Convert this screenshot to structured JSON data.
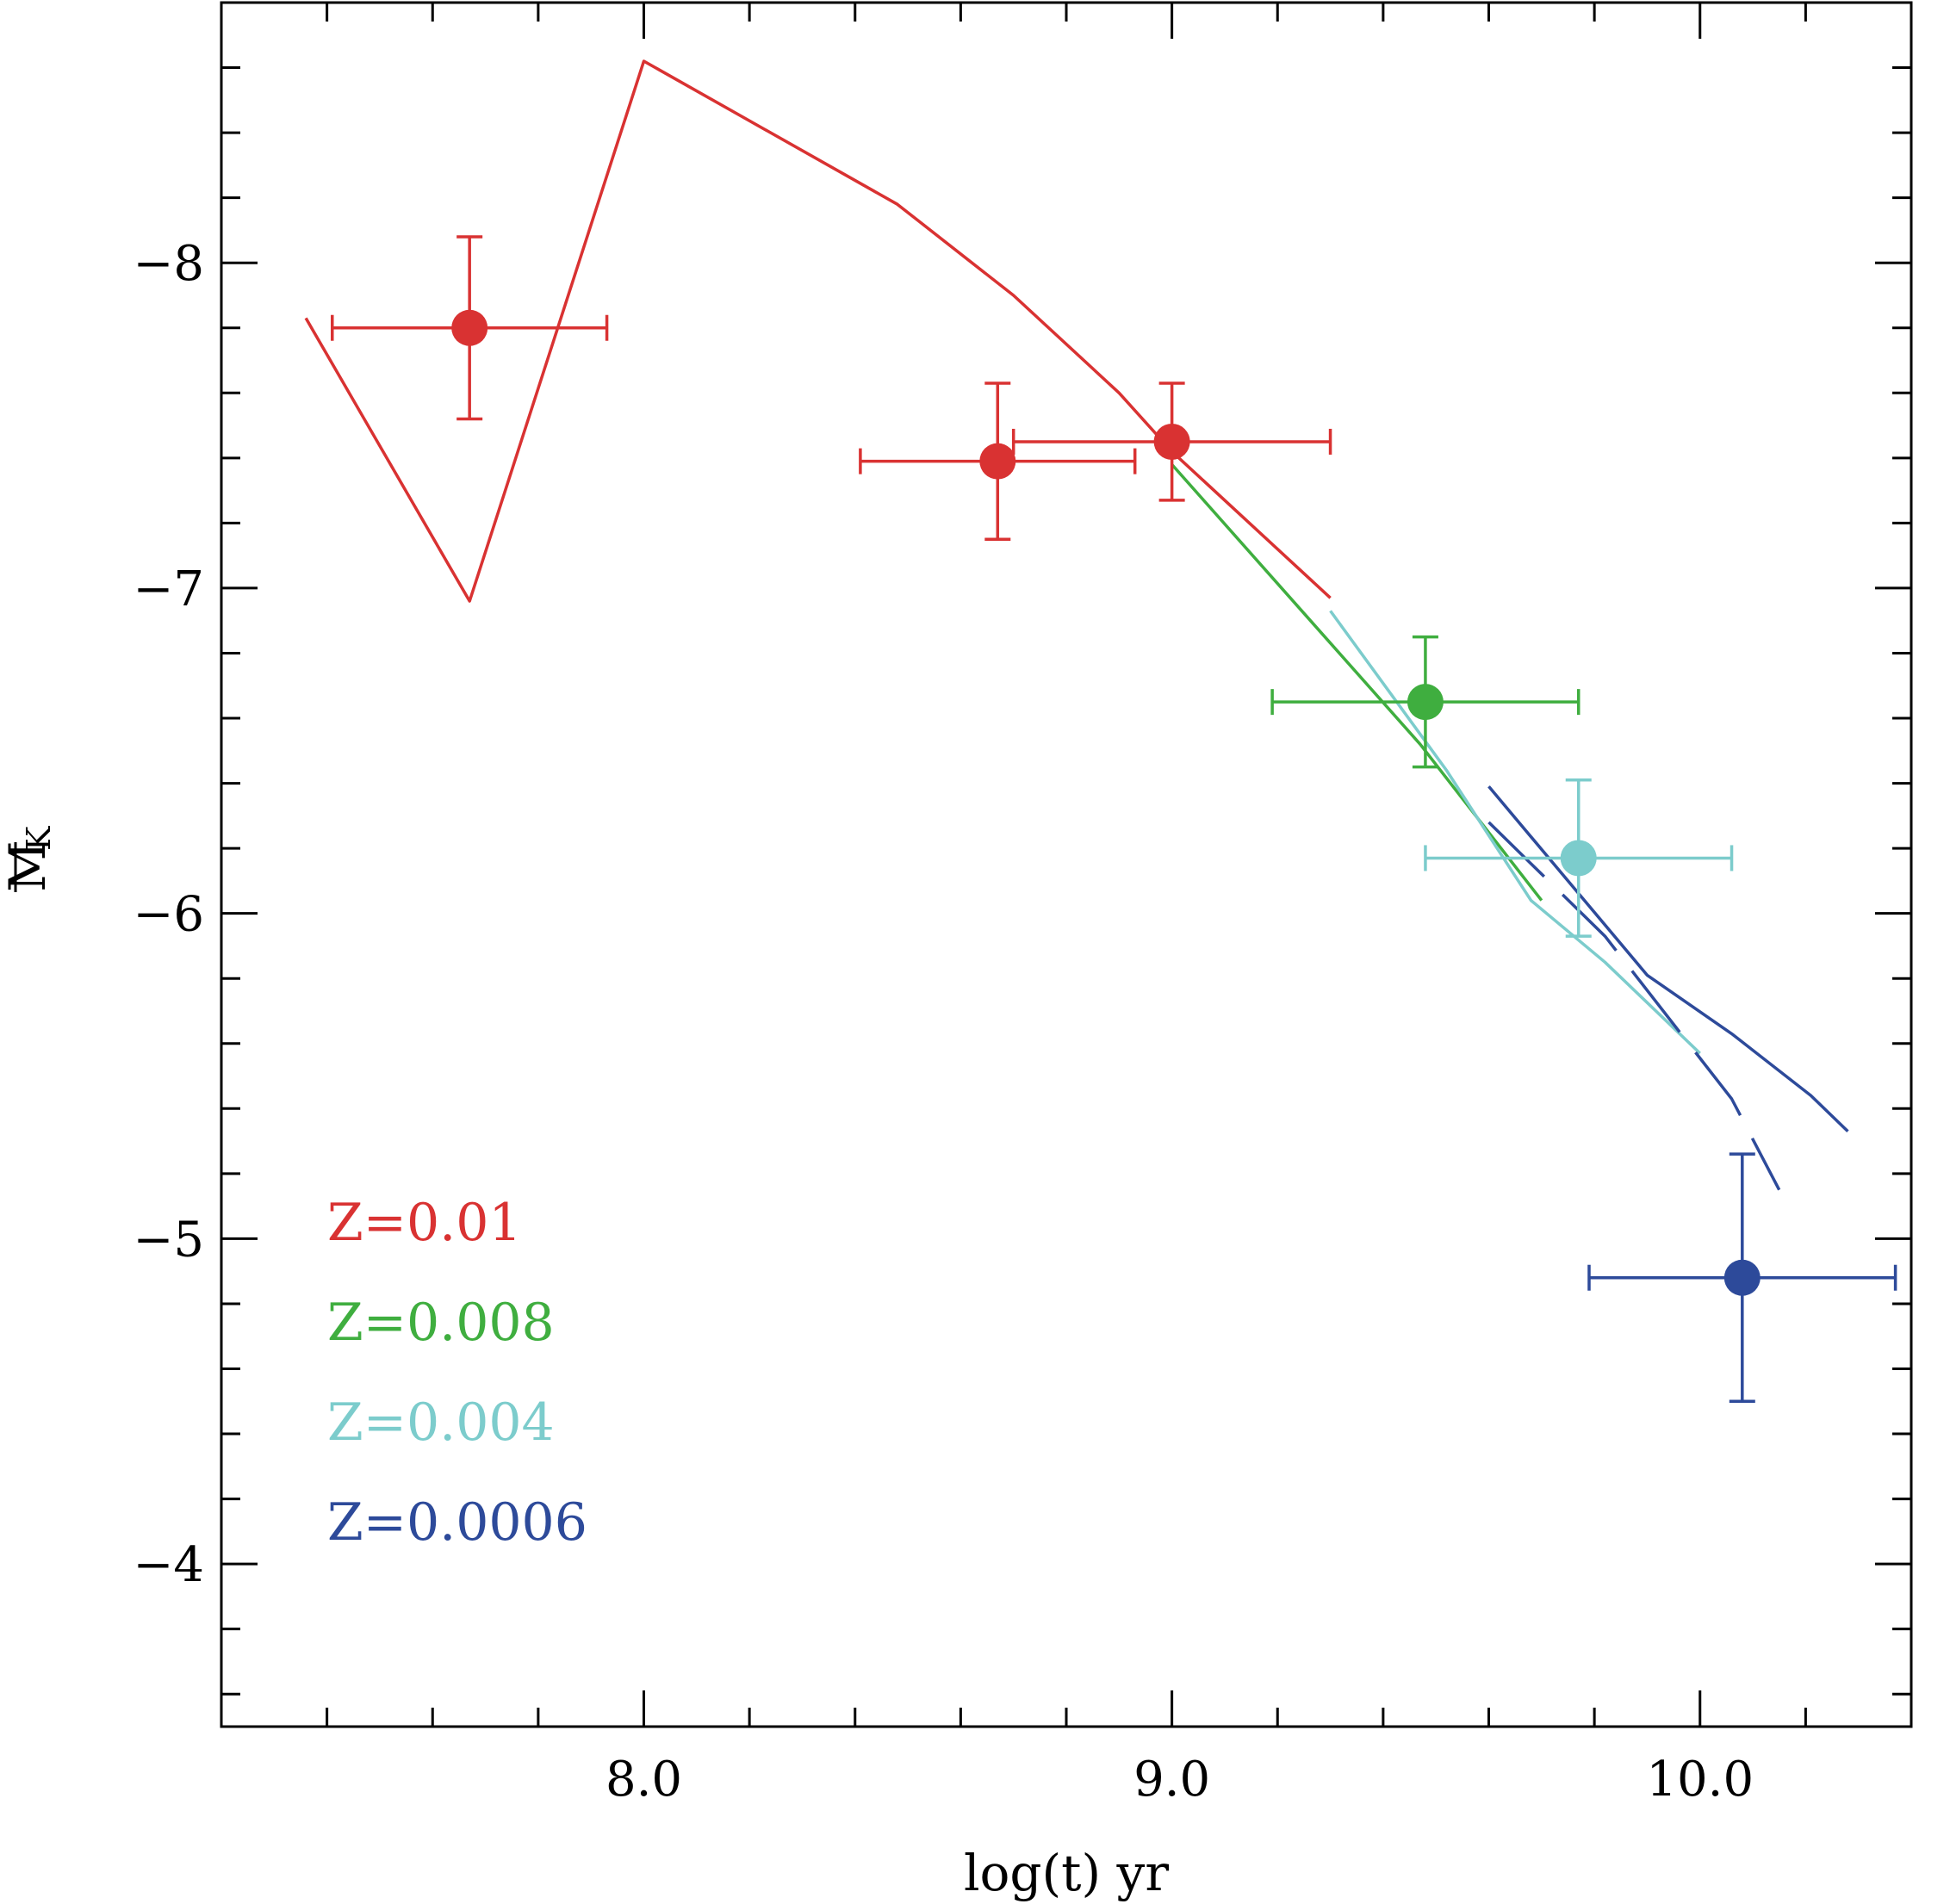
{
  "chart_data": {
    "type": "scatter",
    "title": "",
    "xlabel": "log(t) yr",
    "ylabel": "M_K",
    "ylabel_main": "M",
    "ylabel_sub": "K",
    "xlim": [
      7.2,
      10.4
    ],
    "ylim": [
      -3.5,
      -8.8
    ],
    "y_inverted": true,
    "grid": false,
    "x_major_ticks": [
      8.0,
      9.0,
      10.0
    ],
    "x_tick_labels": [
      "8.0",
      "9.0",
      "10.0"
    ],
    "x_minor_step": 0.2,
    "y_major_ticks": [
      -8,
      -7,
      -6,
      -5,
      -4
    ],
    "y_tick_labels": [
      "−8",
      "−7",
      "−6",
      "−5",
      "−4"
    ],
    "y_minor_step": 0.2,
    "legend_position": "bottom-left",
    "series": [
      {
        "name": "Z=0.01",
        "color": "#d93232",
        "lines": [
          {
            "dashed": false,
            "points": [
              [
                7.36,
                -7.83
              ],
              [
                7.67,
                -6.96
              ],
              [
                8.0,
                -8.62
              ],
              [
                8.48,
                -8.18
              ],
              [
                8.7,
                -7.9
              ],
              [
                8.9,
                -7.6
              ],
              [
                9.0,
                -7.42
              ],
              [
                9.3,
                -6.97
              ]
            ]
          }
        ],
        "points": [
          {
            "x": 7.67,
            "y": -7.8,
            "xerr": 0.26,
            "yerr": 0.28
          },
          {
            "x": 8.67,
            "y": -7.39,
            "xerr": 0.26,
            "yerr": 0.24
          },
          {
            "x": 9.0,
            "y": -7.45,
            "xerr": 0.3,
            "yerr": 0.18
          }
        ]
      },
      {
        "name": "Z=0.008",
        "color": "#3fae3f",
        "lines": [
          {
            "dashed": false,
            "points": [
              [
                9.0,
                -7.38
              ],
              [
                9.47,
                -6.52
              ],
              [
                9.7,
                -6.04
              ]
            ]
          }
        ],
        "points": [
          {
            "x": 9.48,
            "y": -6.65,
            "xerr": 0.29,
            "yerr": 0.2
          }
        ]
      },
      {
        "name": "Z=0.004",
        "color": "#7ccccc",
        "lines": [
          {
            "dashed": false,
            "points": [
              [
                9.3,
                -6.93
              ],
              [
                9.52,
                -6.44
              ],
              [
                9.68,
                -6.04
              ],
              [
                9.82,
                -5.85
              ],
              [
                10.0,
                -5.57
              ]
            ]
          }
        ],
        "points": [
          {
            "x": 9.77,
            "y": -6.17,
            "xerr": 0.29,
            "yerr": 0.24
          }
        ]
      },
      {
        "name": "Z=0.0006",
        "color": "#2d4a9a",
        "lines": [
          {
            "dashed": false,
            "points": [
              [
                9.6,
                -6.39
              ],
              [
                9.9,
                -5.81
              ],
              [
                10.06,
                -5.63
              ],
              [
                10.21,
                -5.44
              ],
              [
                10.28,
                -5.33
              ]
            ]
          },
          {
            "dashed": true,
            "points": [
              [
                9.6,
                -6.28
              ],
              [
                9.82,
                -5.93
              ],
              [
                10.06,
                -5.43
              ],
              [
                10.15,
                -5.15
              ]
            ]
          }
        ],
        "points": [
          {
            "x": 10.08,
            "y": -4.88,
            "xerr": 0.29,
            "yerr": 0.38
          }
        ]
      }
    ]
  }
}
